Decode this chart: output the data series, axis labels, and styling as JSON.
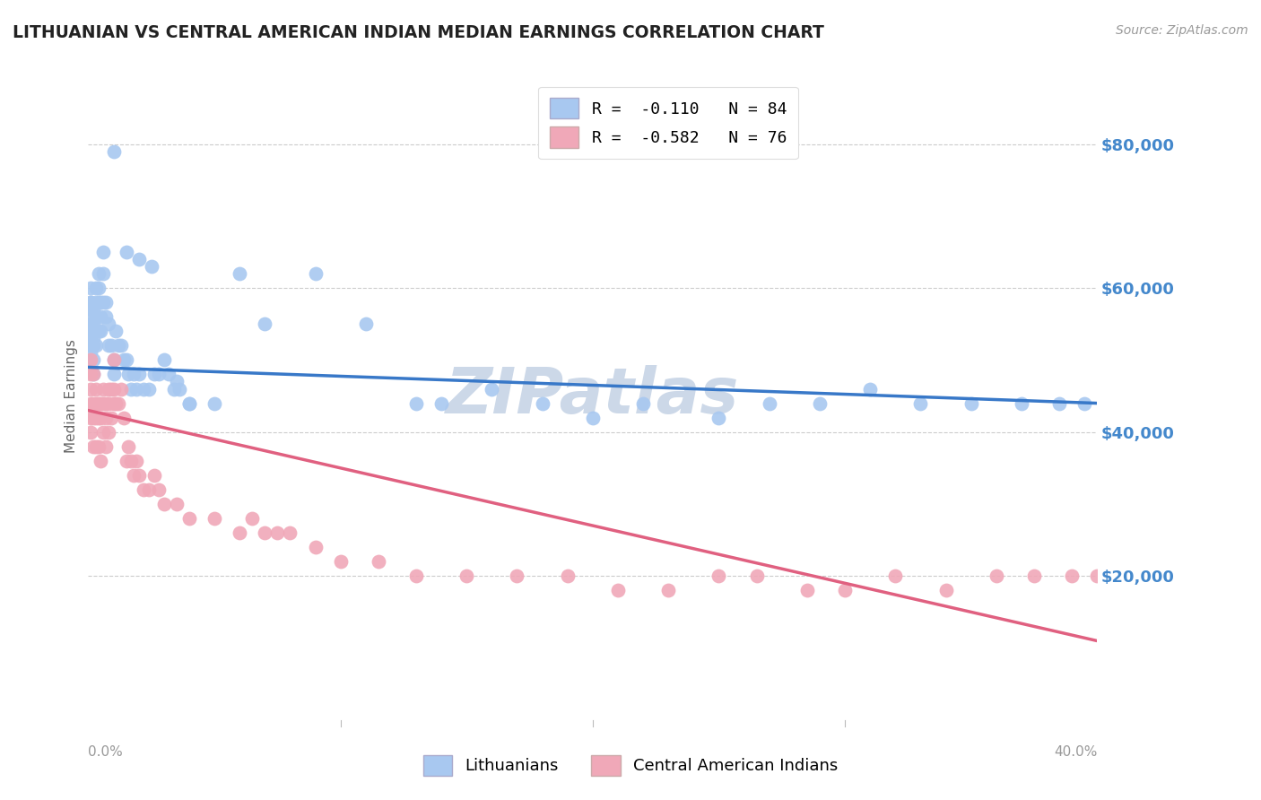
{
  "title": "LITHUANIAN VS CENTRAL AMERICAN INDIAN MEDIAN EARNINGS CORRELATION CHART",
  "source": "Source: ZipAtlas.com",
  "ylabel": "Median Earnings",
  "ytick_labels": [
    "$80,000",
    "$60,000",
    "$40,000",
    "$20,000"
  ],
  "ytick_values": [
    80000,
    60000,
    40000,
    20000
  ],
  "ymin": 0,
  "ymax": 90000,
  "xmin": 0.0,
  "xmax": 0.4,
  "legend_r_labels": [
    "R =  -0.110   N = 84",
    "R =  -0.582   N = 76"
  ],
  "legend_labels": [
    "Lithuanians",
    "Central American Indians"
  ],
  "watermark": "ZIPatlas",
  "blue_scatter_x": [
    0.001,
    0.001,
    0.001,
    0.001,
    0.001,
    0.001,
    0.001,
    0.001,
    0.001,
    0.001,
    0.002,
    0.002,
    0.002,
    0.002,
    0.002,
    0.002,
    0.002,
    0.003,
    0.003,
    0.003,
    0.003,
    0.003,
    0.004,
    0.004,
    0.004,
    0.004,
    0.005,
    0.005,
    0.005,
    0.006,
    0.006,
    0.006,
    0.007,
    0.007,
    0.008,
    0.008,
    0.009,
    0.01,
    0.01,
    0.011,
    0.012,
    0.013,
    0.014,
    0.015,
    0.016,
    0.017,
    0.018,
    0.019,
    0.02,
    0.022,
    0.024,
    0.026,
    0.028,
    0.03,
    0.032,
    0.034,
    0.036,
    0.04,
    0.05,
    0.06,
    0.07,
    0.09,
    0.11,
    0.13,
    0.14,
    0.16,
    0.18,
    0.2,
    0.22,
    0.25,
    0.27,
    0.29,
    0.31,
    0.33,
    0.35,
    0.37,
    0.385,
    0.395,
    0.01,
    0.015,
    0.02,
    0.025,
    0.035,
    0.04
  ],
  "blue_scatter_y": [
    57000,
    55000,
    54000,
    53000,
    52000,
    51000,
    58000,
    56000,
    60000,
    58000,
    57000,
    55000,
    54000,
    53000,
    52000,
    50000,
    48000,
    60000,
    58000,
    56000,
    54000,
    52000,
    62000,
    60000,
    58000,
    54000,
    58000,
    56000,
    54000,
    65000,
    62000,
    58000,
    58000,
    56000,
    55000,
    52000,
    52000,
    50000,
    48000,
    54000,
    52000,
    52000,
    50000,
    50000,
    48000,
    46000,
    48000,
    46000,
    48000,
    46000,
    46000,
    48000,
    48000,
    50000,
    48000,
    46000,
    46000,
    44000,
    44000,
    62000,
    55000,
    62000,
    55000,
    44000,
    44000,
    46000,
    44000,
    42000,
    44000,
    42000,
    44000,
    44000,
    46000,
    44000,
    44000,
    44000,
    44000,
    44000,
    79000,
    65000,
    64000,
    63000,
    47000,
    44000
  ],
  "pink_scatter_x": [
    0.001,
    0.001,
    0.001,
    0.001,
    0.001,
    0.001,
    0.002,
    0.002,
    0.002,
    0.002,
    0.003,
    0.003,
    0.003,
    0.003,
    0.004,
    0.004,
    0.004,
    0.005,
    0.005,
    0.005,
    0.006,
    0.006,
    0.006,
    0.007,
    0.007,
    0.007,
    0.008,
    0.008,
    0.008,
    0.009,
    0.009,
    0.01,
    0.01,
    0.01,
    0.011,
    0.012,
    0.013,
    0.014,
    0.015,
    0.016,
    0.017,
    0.018,
    0.019,
    0.02,
    0.022,
    0.024,
    0.026,
    0.028,
    0.03,
    0.035,
    0.04,
    0.05,
    0.06,
    0.065,
    0.07,
    0.075,
    0.08,
    0.09,
    0.1,
    0.115,
    0.13,
    0.15,
    0.17,
    0.19,
    0.21,
    0.23,
    0.25,
    0.265,
    0.285,
    0.3,
    0.32,
    0.34,
    0.36,
    0.375,
    0.39,
    0.4
  ],
  "pink_scatter_y": [
    50000,
    48000,
    46000,
    44000,
    42000,
    40000,
    48000,
    44000,
    42000,
    38000,
    46000,
    44000,
    42000,
    38000,
    44000,
    42000,
    38000,
    44000,
    42000,
    36000,
    46000,
    44000,
    40000,
    44000,
    42000,
    38000,
    46000,
    44000,
    40000,
    46000,
    42000,
    50000,
    46000,
    44000,
    44000,
    44000,
    46000,
    42000,
    36000,
    38000,
    36000,
    34000,
    36000,
    34000,
    32000,
    32000,
    34000,
    32000,
    30000,
    30000,
    28000,
    28000,
    26000,
    28000,
    26000,
    26000,
    26000,
    24000,
    22000,
    22000,
    20000,
    20000,
    20000,
    20000,
    18000,
    18000,
    20000,
    20000,
    18000,
    18000,
    20000,
    18000,
    20000,
    20000,
    20000,
    20000
  ],
  "blue_line_x": [
    0.0,
    0.4
  ],
  "blue_line_y": [
    49000,
    44000
  ],
  "pink_line_x": [
    0.0,
    0.4
  ],
  "pink_line_y": [
    43000,
    11000
  ],
  "blue_color": "#3878c8",
  "blue_scatter_color": "#a8c8f0",
  "pink_color": "#e06080",
  "pink_scatter_color": "#f0a8b8",
  "grid_color": "#cccccc",
  "ytick_color": "#4488cc",
  "title_fontsize": 13.5,
  "source_fontsize": 10,
  "watermark_color": "#ccd8e8",
  "watermark_fontsize": 52
}
